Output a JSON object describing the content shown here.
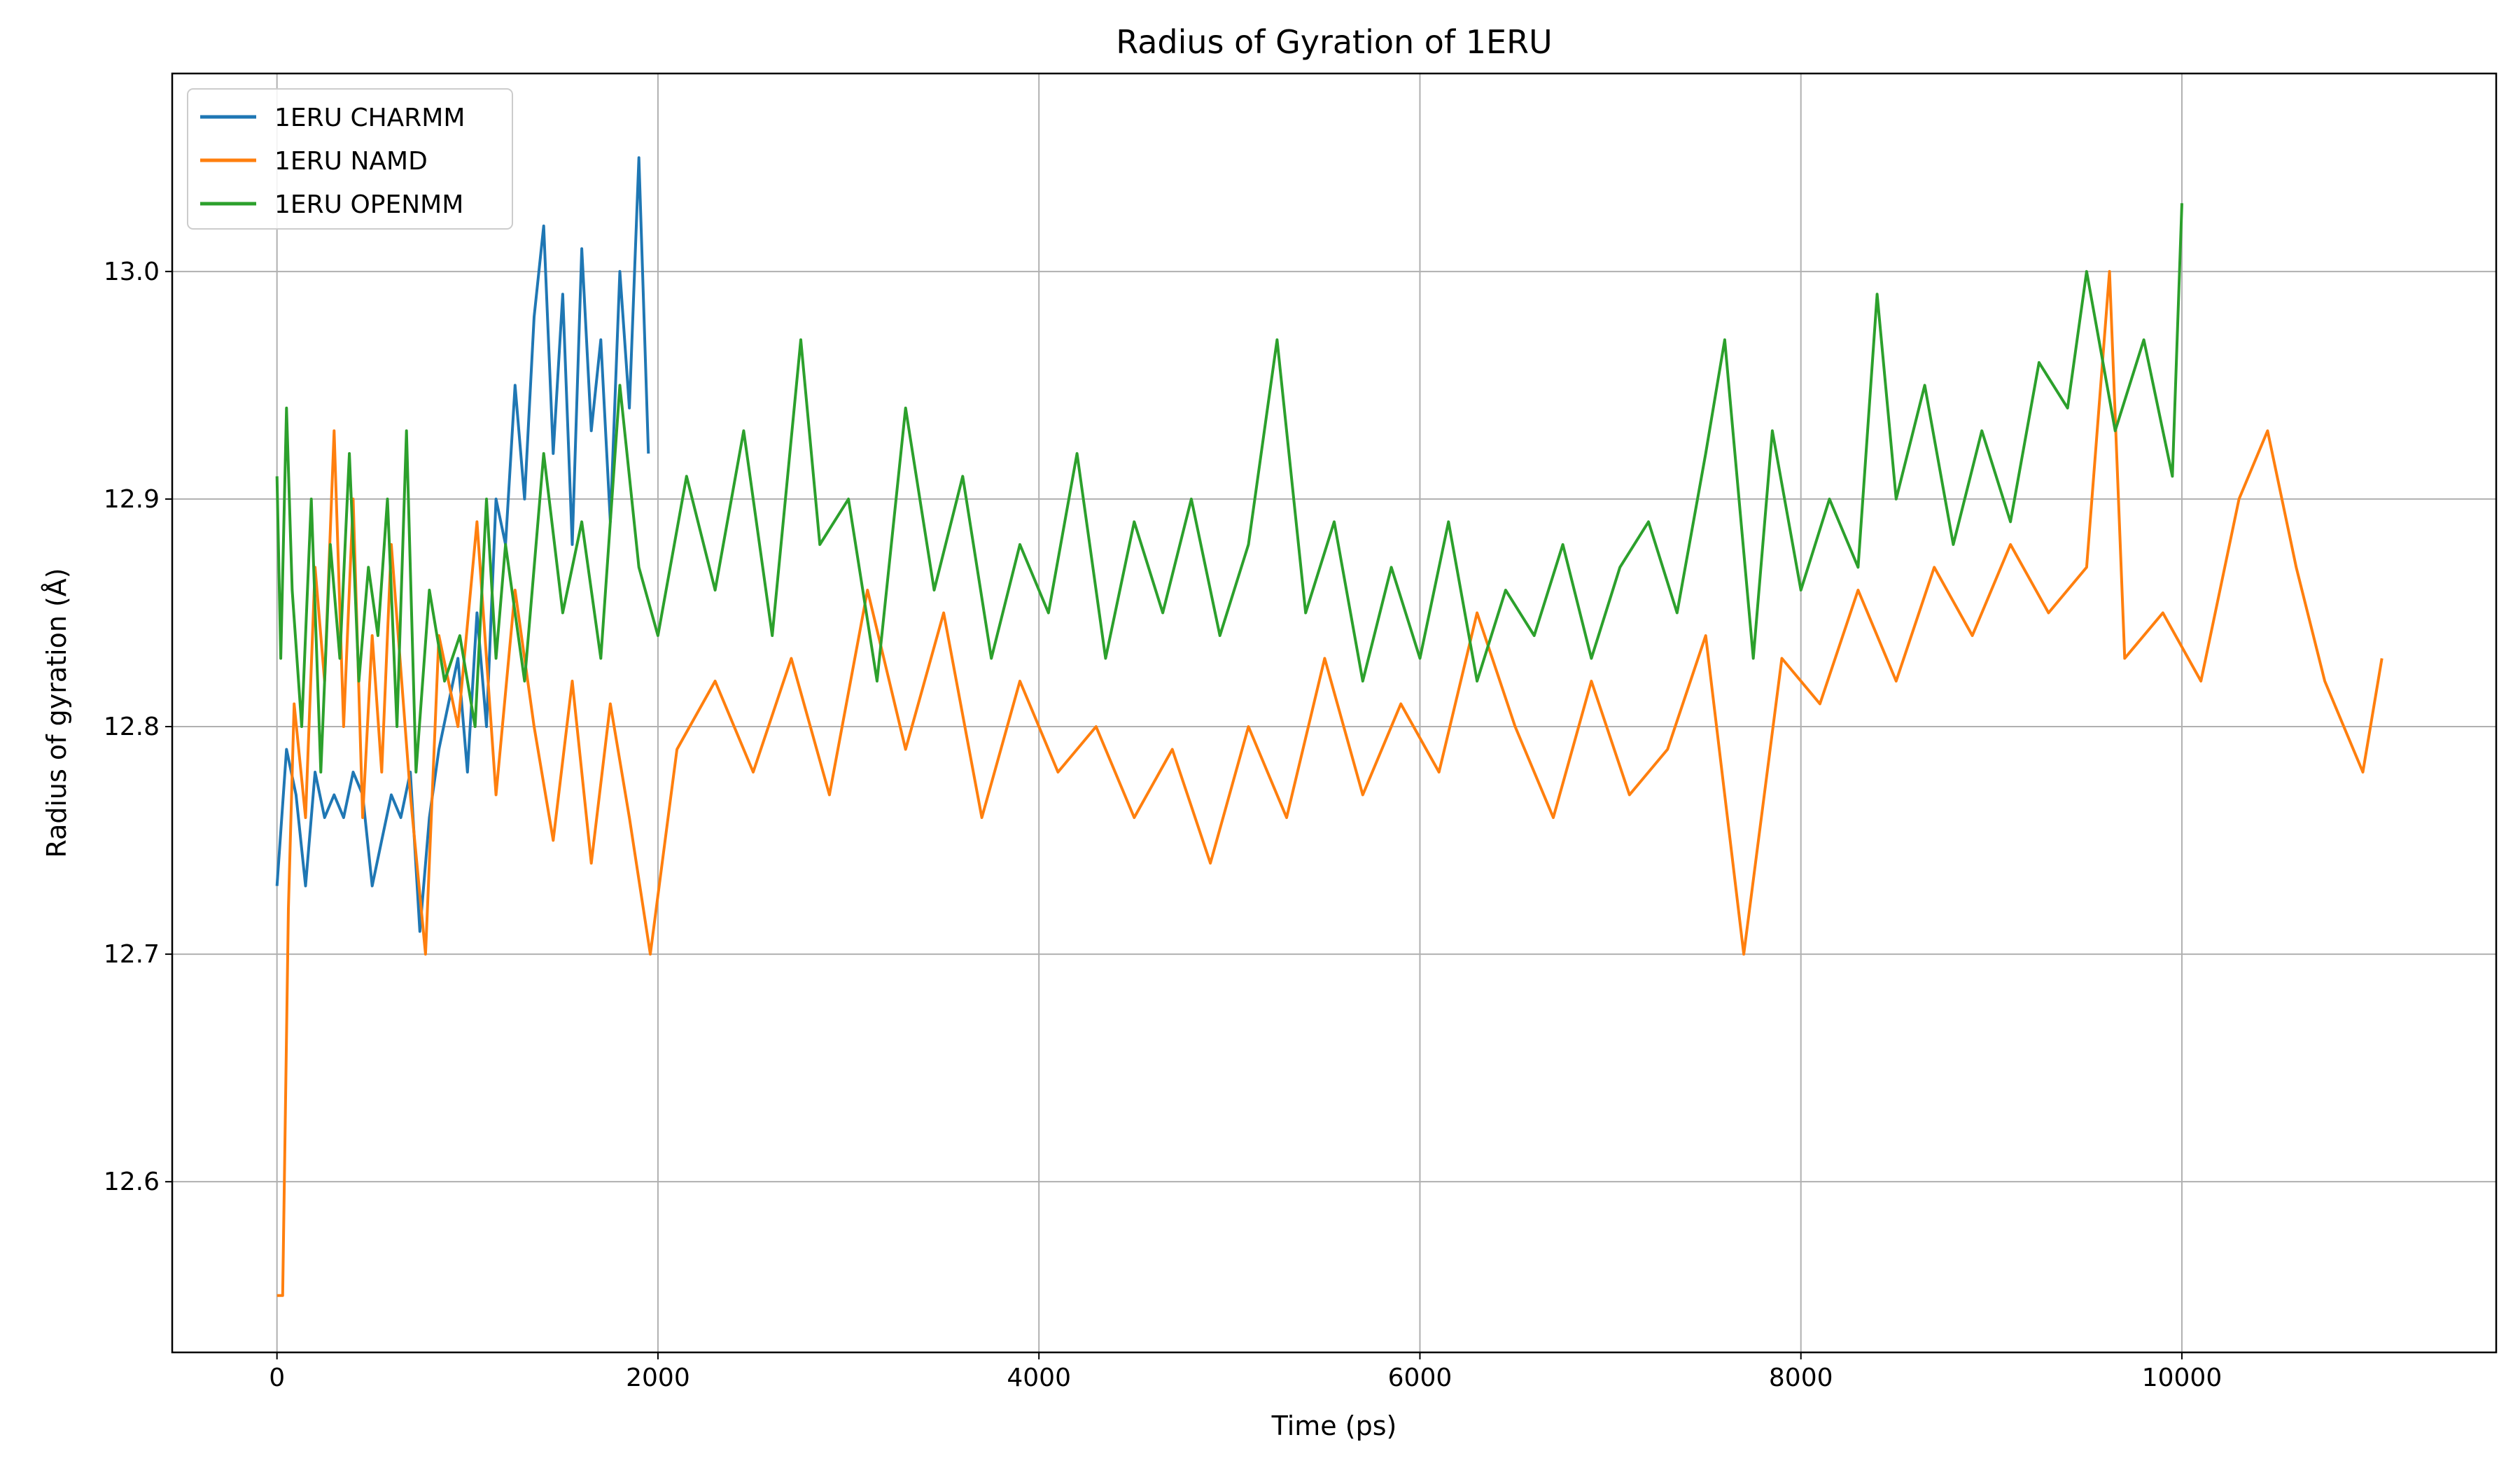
{
  "chart_data": {
    "type": "line",
    "title": "Radius of Gyration of 1ERU",
    "xlabel": "Time (ps)",
    "ylabel": "Radius of gyration (Å)",
    "xlim": [
      -550,
      11650
    ],
    "ylim": [
      12.525,
      13.087
    ],
    "xticks": [
      0,
      2000,
      4000,
      6000,
      8000,
      10000
    ],
    "yticks": [
      12.6,
      12.7,
      12.8,
      12.9,
      13.0
    ],
    "xtick_labels": [
      "0",
      "2000",
      "4000",
      "6000",
      "8000",
      "10000"
    ],
    "ytick_labels": [
      "12.6",
      "12.7",
      "12.8",
      "12.9",
      "13.0"
    ],
    "grid": true,
    "legend_position": "top-left",
    "series": [
      {
        "name": "1ERU CHARMM",
        "color": "#1f77b4",
        "x": [
          0,
          50,
          100,
          150,
          200,
          250,
          300,
          350,
          400,
          450,
          500,
          550,
          600,
          650,
          700,
          750,
          800,
          850,
          900,
          950,
          1000,
          1050,
          1100,
          1150,
          1200,
          1250,
          1300,
          1350,
          1400,
          1450,
          1500,
          1550,
          1600,
          1650,
          1700,
          1750,
          1800,
          1850,
          1900,
          1950
        ],
        "y": [
          12.73,
          12.79,
          12.77,
          12.73,
          12.78,
          12.76,
          12.77,
          12.76,
          12.78,
          12.77,
          12.73,
          12.75,
          12.77,
          12.76,
          12.78,
          12.71,
          12.76,
          12.79,
          12.81,
          12.83,
          12.78,
          12.85,
          12.8,
          12.9,
          12.88,
          12.95,
          12.9,
          12.98,
          13.02,
          12.92,
          12.99,
          12.88,
          13.01,
          12.93,
          12.97,
          12.89,
          13.0,
          12.94,
          13.05,
          12.92
        ]
      },
      {
        "name": "1ERU NAMD",
        "color": "#ff7f0e",
        "x": [
          0,
          30,
          60,
          90,
          150,
          200,
          250,
          300,
          350,
          400,
          450,
          500,
          550,
          600,
          700,
          780,
          850,
          950,
          1050,
          1150,
          1250,
          1350,
          1450,
          1550,
          1650,
          1750,
          1850,
          1960,
          2100,
          2300,
          2500,
          2700,
          2900,
          3100,
          3300,
          3500,
          3700,
          3900,
          4100,
          4300,
          4500,
          4700,
          4900,
          5100,
          5300,
          5500,
          5700,
          5900,
          6100,
          6300,
          6500,
          6700,
          6900,
          7100,
          7300,
          7500,
          7700,
          7900,
          8100,
          8300,
          8500,
          8700,
          8900,
          9100,
          9300,
          9500,
          9620,
          9700,
          9900,
          10100,
          10300,
          10450,
          10600,
          10750,
          10850,
          10950,
          11050
        ],
        "y": [
          12.55,
          12.55,
          12.72,
          12.81,
          12.76,
          12.87,
          12.82,
          12.93,
          12.8,
          12.9,
          12.76,
          12.84,
          12.78,
          12.88,
          12.77,
          12.7,
          12.84,
          12.8,
          12.89,
          12.77,
          12.86,
          12.8,
          12.75,
          12.82,
          12.74,
          12.81,
          12.76,
          12.7,
          12.79,
          12.82,
          12.78,
          12.83,
          12.77,
          12.86,
          12.79,
          12.85,
          12.76,
          12.82,
          12.78,
          12.8,
          12.76,
          12.79,
          12.74,
          12.8,
          12.76,
          12.83,
          12.77,
          12.81,
          12.78,
          12.85,
          12.8,
          12.76,
          12.82,
          12.77,
          12.79,
          12.84,
          12.7,
          12.83,
          12.81,
          12.86,
          12.82,
          12.87,
          12.84,
          12.88,
          12.85,
          12.87,
          13.0,
          12.83,
          12.85,
          12.82,
          12.9,
          12.93,
          12.87,
          12.82,
          12.8,
          12.78,
          12.83
        ]
      },
      {
        "name": "1ERU OPENMM",
        "color": "#2ca02c",
        "x": [
          0,
          20,
          50,
          80,
          130,
          180,
          230,
          280,
          330,
          380,
          430,
          480,
          530,
          580,
          630,
          680,
          730,
          800,
          880,
          960,
          1040,
          1100,
          1150,
          1200,
          1300,
          1400,
          1500,
          1600,
          1700,
          1800,
          1900,
          2000,
          2150,
          2300,
          2450,
          2600,
          2750,
          2850,
          3000,
          3150,
          3300,
          3450,
          3600,
          3750,
          3900,
          4050,
          4200,
          4350,
          4500,
          4650,
          4800,
          4950,
          5100,
          5250,
          5400,
          5550,
          5700,
          5850,
          6000,
          6150,
          6300,
          6450,
          6600,
          6750,
          6900,
          7050,
          7200,
          7350,
          7500,
          7600,
          7750,
          7850,
          8000,
          8150,
          8300,
          8400,
          8500,
          8650,
          8800,
          8950,
          9100,
          9250,
          9400,
          9500,
          9650,
          9800,
          9950,
          10000
        ],
        "y": [
          12.91,
          12.83,
          12.94,
          12.86,
          12.8,
          12.9,
          12.78,
          12.88,
          12.83,
          12.92,
          12.82,
          12.87,
          12.84,
          12.9,
          12.8,
          12.93,
          12.78,
          12.86,
          12.82,
          12.84,
          12.8,
          12.9,
          12.83,
          12.88,
          12.82,
          12.92,
          12.85,
          12.89,
          12.83,
          12.95,
          12.87,
          12.84,
          12.91,
          12.86,
          12.93,
          12.84,
          12.97,
          12.88,
          12.9,
          12.82,
          12.94,
          12.86,
          12.91,
          12.83,
          12.88,
          12.85,
          12.92,
          12.83,
          12.89,
          12.85,
          12.9,
          12.84,
          12.88,
          12.97,
          12.85,
          12.89,
          12.82,
          12.87,
          12.83,
          12.89,
          12.82,
          12.86,
          12.84,
          12.88,
          12.83,
          12.87,
          12.89,
          12.85,
          12.92,
          12.97,
          12.83,
          12.93,
          12.86,
          12.9,
          12.87,
          12.99,
          12.9,
          12.95,
          12.88,
          12.93,
          12.89,
          12.96,
          12.94,
          13.0,
          12.93,
          12.97,
          12.91,
          13.03
        ]
      }
    ]
  }
}
